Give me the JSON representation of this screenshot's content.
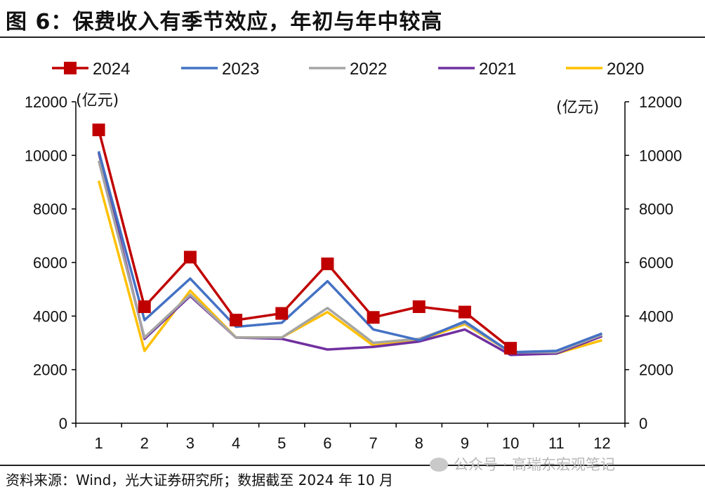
{
  "title": "图 6：保费收入有季节效应，年初与年中较高",
  "source": "资料来源：Wind，光大证券研究所；数据截至 2024 年 10 月",
  "watermark": "公众号 · 高瑞东宏观笔记",
  "chart_data": {
    "type": "line",
    "title": "",
    "xlabel": "",
    "y_unit_left": "(亿元)",
    "y_unit_right": "(亿元)",
    "ylim": [
      0,
      12000
    ],
    "yticks": [
      0,
      2000,
      4000,
      6000,
      8000,
      10000,
      12000
    ],
    "categories": [
      "1",
      "2",
      "3",
      "4",
      "5",
      "6",
      "7",
      "8",
      "9",
      "10",
      "11",
      "12"
    ],
    "grid": false,
    "legend_position": "top",
    "series": [
      {
        "name": "2024",
        "color": "#c00000",
        "marker": "square",
        "values": [
          10950,
          4350,
          6200,
          3850,
          4100,
          5950,
          3950,
          4350,
          4150,
          2800,
          null,
          null
        ]
      },
      {
        "name": "2023",
        "color": "#4472c4",
        "marker": "none",
        "values": [
          10150,
          3850,
          5400,
          3600,
          3750,
          5300,
          3500,
          3100,
          3800,
          2650,
          2700,
          3350
        ]
      },
      {
        "name": "2022",
        "color": "#a5a5a5",
        "marker": "none",
        "values": [
          9800,
          3200,
          4800,
          3200,
          3200,
          4300,
          3000,
          3150,
          3750,
          2650,
          2650,
          3300
        ]
      },
      {
        "name": "2021",
        "color": "#7030a0",
        "marker": "none",
        "values": [
          10100,
          3150,
          4750,
          3200,
          3150,
          2750,
          2850,
          3050,
          3500,
          2550,
          2600,
          3250
        ]
      },
      {
        "name": "2020",
        "color": "#ffc000",
        "marker": "none",
        "values": [
          9050,
          2700,
          4950,
          3200,
          3200,
          4150,
          2900,
          3100,
          3700,
          2650,
          2600,
          3100
        ]
      }
    ]
  }
}
